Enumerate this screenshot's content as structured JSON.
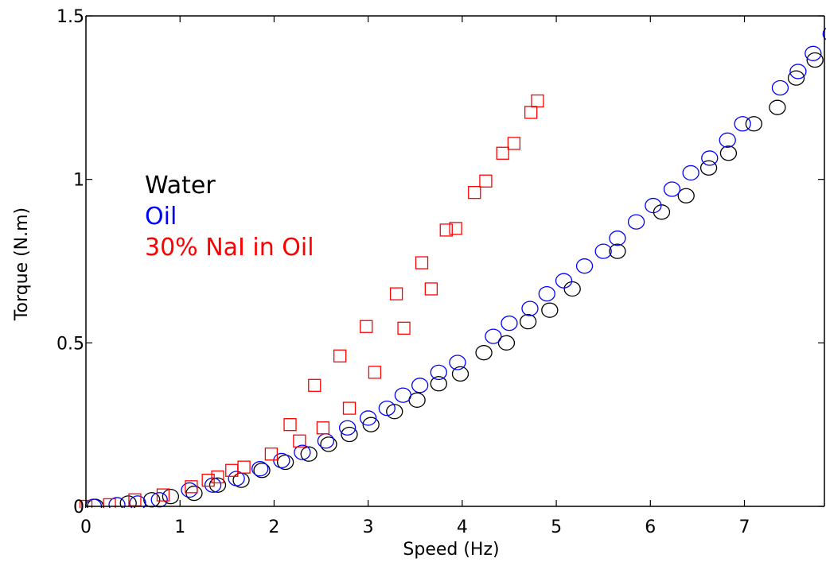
{
  "chart_data": {
    "type": "scatter",
    "xlabel": "Speed (Hz)",
    "ylabel": "Torque (N.m)",
    "xlim": [
      0,
      7.85
    ],
    "ylim": [
      0,
      1.5
    ],
    "x_ticks": [
      0,
      1,
      2,
      3,
      4,
      5,
      6,
      7
    ],
    "y_ticks": [
      0,
      0.5,
      1,
      1.5
    ],
    "x_tick_labels": [
      "0",
      "1",
      "2",
      "3",
      "4",
      "5",
      "6",
      "7"
    ],
    "y_tick_labels": [
      "0",
      "0.5",
      "1",
      "1.5"
    ],
    "grid": false,
    "legend_placement": "upper-left",
    "series": [
      {
        "name": "Water",
        "color": "#000000",
        "marker": "circle",
        "points": [
          [
            0.1,
            0.0
          ],
          [
            0.45,
            0.01
          ],
          [
            0.7,
            0.02
          ],
          [
            0.9,
            0.03
          ],
          [
            1.15,
            0.04
          ],
          [
            1.4,
            0.065
          ],
          [
            1.65,
            0.08
          ],
          [
            1.87,
            0.11
          ],
          [
            2.12,
            0.135
          ],
          [
            2.37,
            0.16
          ],
          [
            2.58,
            0.19
          ],
          [
            2.8,
            0.22
          ],
          [
            3.03,
            0.25
          ],
          [
            3.28,
            0.29
          ],
          [
            3.52,
            0.325
          ],
          [
            3.75,
            0.375
          ],
          [
            3.98,
            0.405
          ],
          [
            4.23,
            0.47
          ],
          [
            4.47,
            0.5
          ],
          [
            4.7,
            0.565
          ],
          [
            4.93,
            0.6
          ],
          [
            5.17,
            0.665
          ],
          [
            5.65,
            0.78
          ],
          [
            6.12,
            0.9
          ],
          [
            6.38,
            0.95
          ],
          [
            6.62,
            1.035
          ],
          [
            6.83,
            1.08
          ],
          [
            7.1,
            1.17
          ],
          [
            7.35,
            1.22
          ],
          [
            7.55,
            1.31
          ],
          [
            7.75,
            1.365
          ]
        ]
      },
      {
        "name": "Oil",
        "color": "#0000ff",
        "marker": "circle",
        "points": [
          [
            0.08,
            0.0
          ],
          [
            0.33,
            0.005
          ],
          [
            0.55,
            0.01
          ],
          [
            0.78,
            0.02
          ],
          [
            1.1,
            0.05
          ],
          [
            1.35,
            0.065
          ],
          [
            1.6,
            0.085
          ],
          [
            1.85,
            0.115
          ],
          [
            2.08,
            0.14
          ],
          [
            2.3,
            0.165
          ],
          [
            2.55,
            0.2
          ],
          [
            2.78,
            0.24
          ],
          [
            3.0,
            0.27
          ],
          [
            3.2,
            0.3
          ],
          [
            3.37,
            0.34
          ],
          [
            3.55,
            0.37
          ],
          [
            3.75,
            0.41
          ],
          [
            3.95,
            0.44
          ],
          [
            4.33,
            0.52
          ],
          [
            4.5,
            0.56
          ],
          [
            4.72,
            0.605
          ],
          [
            4.9,
            0.65
          ],
          [
            5.08,
            0.69
          ],
          [
            5.3,
            0.735
          ],
          [
            5.5,
            0.78
          ],
          [
            5.65,
            0.82
          ],
          [
            5.85,
            0.87
          ],
          [
            6.03,
            0.92
          ],
          [
            6.23,
            0.97
          ],
          [
            6.43,
            1.02
          ],
          [
            6.63,
            1.065
          ],
          [
            6.82,
            1.12
          ],
          [
            6.98,
            1.17
          ],
          [
            7.38,
            1.28
          ],
          [
            7.57,
            1.33
          ],
          [
            7.73,
            1.385
          ],
          [
            7.92,
            1.445
          ]
        ]
      },
      {
        "name": "30% NaI in Oil",
        "color": "#ff0000",
        "marker": "square",
        "points": [
          [
            0.0,
            0.0
          ],
          [
            0.25,
            0.005
          ],
          [
            0.52,
            0.02
          ],
          [
            0.82,
            0.035
          ],
          [
            1.12,
            0.06
          ],
          [
            1.3,
            0.08
          ],
          [
            1.4,
            0.09
          ],
          [
            1.55,
            0.11
          ],
          [
            1.68,
            0.12
          ],
          [
            1.97,
            0.16
          ],
          [
            2.17,
            0.25
          ],
          [
            2.27,
            0.2
          ],
          [
            2.43,
            0.37
          ],
          [
            2.52,
            0.24
          ],
          [
            2.7,
            0.46
          ],
          [
            2.8,
            0.3
          ],
          [
            2.98,
            0.55
          ],
          [
            3.07,
            0.41
          ],
          [
            3.3,
            0.65
          ],
          [
            3.38,
            0.545
          ],
          [
            3.57,
            0.745
          ],
          [
            3.67,
            0.665
          ],
          [
            3.83,
            0.845
          ],
          [
            3.93,
            0.85
          ],
          [
            4.13,
            0.96
          ],
          [
            4.25,
            0.995
          ],
          [
            4.43,
            1.08
          ],
          [
            4.55,
            1.11
          ],
          [
            4.73,
            1.205
          ],
          [
            4.8,
            1.24
          ]
        ]
      }
    ]
  }
}
